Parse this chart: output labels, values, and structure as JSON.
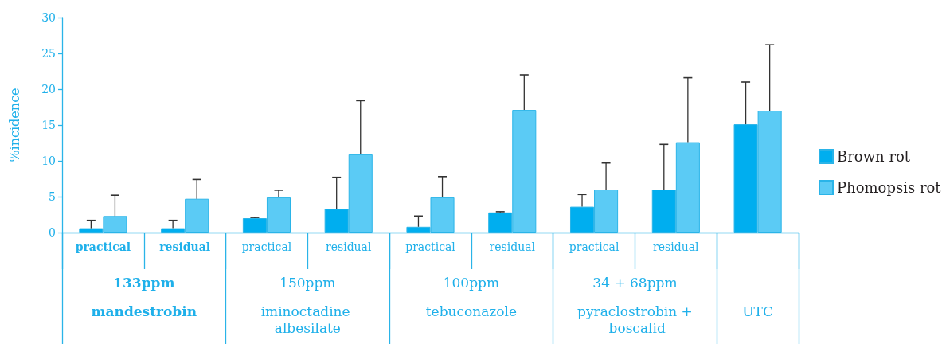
{
  "chart_data": {
    "type": "bar",
    "ylabel": "%incidence",
    "categories": [
      "practical",
      "residual",
      "practical",
      "residual",
      "practical",
      "residual",
      "practical",
      "residual",
      null
    ],
    "series": [
      {
        "name": "Brown rot",
        "color": "#00aeef",
        "values": [
          0.6,
          0.6,
          2.0,
          3.3,
          0.8,
          2.8,
          3.6,
          6.0,
          15.1
        ],
        "errors": [
          [
            0.6,
            1.7
          ],
          [
            0.6,
            1.7
          ],
          [
            2.0,
            2.1
          ],
          [
            3.3,
            7.7
          ],
          [
            0.8,
            2.3
          ],
          [
            2.8,
            2.9
          ],
          [
            3.6,
            5.3
          ],
          [
            6.0,
            12.3
          ],
          [
            15.1,
            21.0
          ]
        ]
      },
      {
        "name": "Phomopsis rot",
        "color": "#5bcbf5",
        "values": [
          2.3,
          4.7,
          4.9,
          10.9,
          4.9,
          17.1,
          6.0,
          12.6,
          17.0
        ],
        "errors": [
          [
            2.3,
            5.2
          ],
          [
            4.7,
            7.4
          ],
          [
            4.9,
            5.9
          ],
          [
            10.9,
            18.4
          ],
          [
            4.9,
            7.8
          ],
          [
            17.1,
            22.0
          ],
          [
            6.0,
            9.7
          ],
          [
            12.6,
            21.6
          ],
          [
            17.0,
            26.2
          ]
        ]
      }
    ],
    "ylim": [
      0,
      30
    ],
    "yticks": [
      0,
      5,
      10,
      15,
      20,
      25,
      30
    ],
    "legend": "right",
    "annotations": [
      "133ppm",
      "mandestrobin",
      "150ppm",
      "iminoctadine albesilate",
      "100ppm",
      "tebuconazole",
      "34 + 68ppm",
      "pyraclostrobin + boscalid",
      "UTC"
    ]
  }
}
